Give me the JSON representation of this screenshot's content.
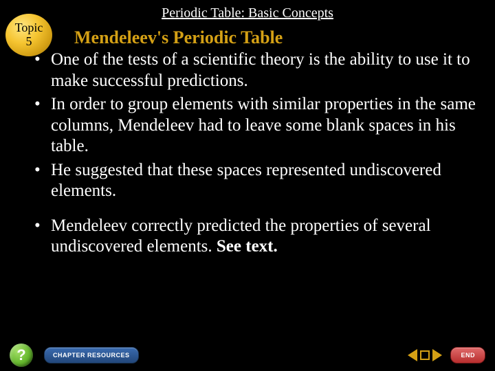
{
  "slide": {
    "title": "Periodic Table: Basic Concepts",
    "topic_label": "Topic",
    "topic_number": "5",
    "heading": "Mendeleev's Periodic Table",
    "bullets_group1": [
      "One of the tests of a scientific theory is the ability to use it to make successful predictions.",
      "In order to group elements with similar properties in the same columns, Mendeleev had to leave some blank spaces in his table.",
      "He suggested that these spaces represented undiscovered elements."
    ],
    "bullets_group2_prefix": "Mendeleev correctly predicted the properties of several undiscovered elements. ",
    "bullets_group2_bold": "See text."
  },
  "nav": {
    "help_label": "?",
    "chapter_button": "CHAPTER RESOURCES",
    "end_button": "END"
  },
  "colors": {
    "background": "#000000",
    "heading": "#d4a015",
    "body_text": "#ffffff",
    "nav_gold": "#d4a015",
    "help_green": "#66b82e",
    "chapter_blue": "#2d5594",
    "end_red": "#c94444"
  },
  "typography": {
    "title_fontsize": 20,
    "heading_fontsize": 26,
    "bullet_fontsize": 25,
    "nav_button_fontsize": 9
  }
}
